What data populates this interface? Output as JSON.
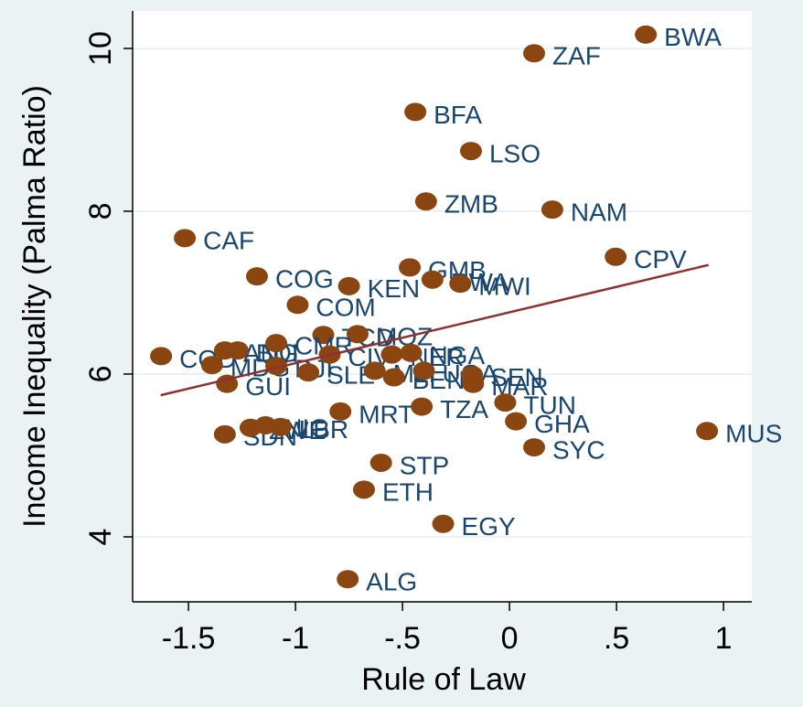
{
  "chart_data": {
    "type": "scatter",
    "xlabel": "Rule of Law",
    "ylabel": "Income Inequality (Palma Ratio)",
    "labels": [
      "BWA",
      "ZAF",
      "BFA",
      "LSO",
      "ZMB",
      "NAM",
      "CAF",
      "CPV",
      "GMB",
      "COG",
      "KEN",
      "RWA",
      "MWI",
      "COM",
      "TCD",
      "MOZ",
      "COD",
      "ANG",
      "BDI",
      "MDG",
      "CMR",
      "DJI",
      "SLE",
      "GUI",
      "CIV",
      "MLI",
      "NER",
      "NGA",
      "BEN",
      "UGA",
      "SEN",
      "MAR",
      "MRT",
      "TZA",
      "TUN",
      "GHA",
      "SYC",
      "MUS",
      "SDN",
      "ZWE",
      "NIG",
      "LBR",
      "STP",
      "ETH",
      "EGY",
      "ALG"
    ],
    "x": [
      0.637,
      0.115,
      -0.44,
      -0.18,
      -0.39,
      0.2,
      -1.517,
      0.496,
      -0.466,
      -1.18,
      -0.75,
      -0.36,
      -0.23,
      -0.99,
      -0.87,
      -0.71,
      -1.628,
      -1.33,
      -1.27,
      -1.39,
      -1.09,
      -1.09,
      -0.94,
      -1.32,
      -0.84,
      -0.63,
      -0.55,
      -0.46,
      -0.54,
      -0.4,
      -0.175,
      -0.17,
      -0.79,
      -0.41,
      -0.02,
      0.03,
      0.115,
      0.923,
      -1.33,
      -1.21,
      -1.14,
      -1.07,
      -0.6,
      -0.68,
      -0.31,
      -0.756
    ],
    "y": [
      10.17,
      9.94,
      9.22,
      8.74,
      8.12,
      8.02,
      7.67,
      7.44,
      7.31,
      7.2,
      7.08,
      7.16,
      7.11,
      6.85,
      6.48,
      6.49,
      6.22,
      6.29,
      6.29,
      6.11,
      6.38,
      6.1,
      6.02,
      5.88,
      6.24,
      6.04,
      6.24,
      6.26,
      5.96,
      6.04,
      5.99,
      5.88,
      5.54,
      5.6,
      5.65,
      5.42,
      5.1,
      5.3,
      5.26,
      5.34,
      5.37,
      5.35,
      4.91,
      4.58,
      4.16,
      3.48
    ],
    "marker_color": "#8b4511",
    "label_color": "#1a476f",
    "fit": {
      "x": [
        -1.63,
        0.93
      ],
      "y": [
        5.74,
        7.34
      ],
      "color": "#903030"
    },
    "xlim": [
      -1.761,
      1.132
    ],
    "ylim": [
      3.202,
      10.46
    ],
    "xticks": [
      -1.5,
      -1,
      {
        "value": -0.5,
        "label": "-.5"
      },
      0,
      {
        "value": 0.5,
        "label": ".5"
      },
      1
    ],
    "yticks": [
      4,
      6,
      8,
      10
    ],
    "grid": true
  }
}
